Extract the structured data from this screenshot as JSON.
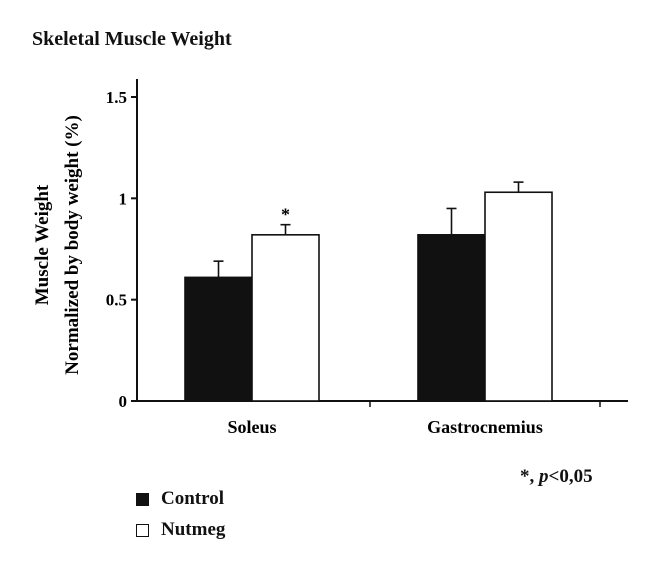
{
  "chart_data": {
    "type": "bar",
    "title": "Skeletal Muscle Weight",
    "ylabel_line1": "Muscle Weight",
    "ylabel_line2": "Normalized by body weight (%)",
    "xlabel": "",
    "categories": [
      "Soleus",
      "Gastrocnemius"
    ],
    "ylim": [
      0,
      1.5
    ],
    "yticks": [
      0,
      0.5,
      1,
      1.5
    ],
    "ytick_labels": [
      "0",
      "0.5",
      "1",
      "1.5"
    ],
    "series": [
      {
        "name": "Control",
        "values": [
          0.61,
          0.82
        ],
        "errors": [
          0.08,
          0.13
        ],
        "color": "#111111",
        "fill": "#111111"
      },
      {
        "name": "Nutmeg",
        "values": [
          0.82,
          1.03
        ],
        "errors": [
          0.05,
          0.05
        ],
        "color": "#111111",
        "fill": "#ffffff"
      }
    ],
    "significance_markers": [
      {
        "category": "Soleus",
        "series": "Nutmeg",
        "symbol": "*"
      }
    ],
    "annotation": {
      "prefix": "*, ",
      "p": "p",
      "suffix": "<0,05"
    },
    "grid": false,
    "legend_position": "bottom-left"
  }
}
